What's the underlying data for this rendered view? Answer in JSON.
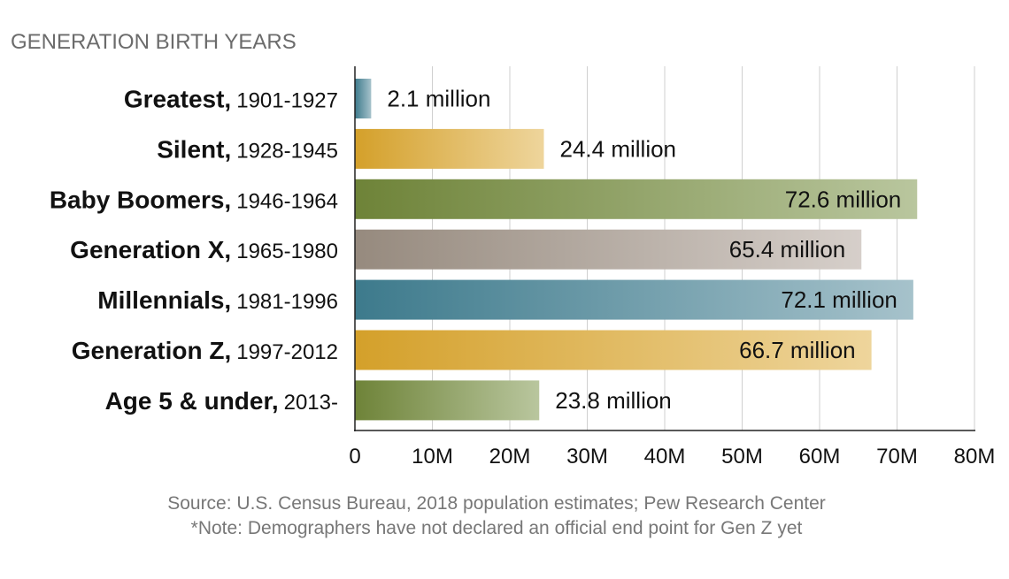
{
  "chart_data": {
    "type": "bar",
    "orientation": "horizontal",
    "title": "GENERATION BIRTH YEARS",
    "categories": [
      {
        "name": "Greatest,",
        "years": "1901-1927"
      },
      {
        "name": "Silent,",
        "years": "1928-1945"
      },
      {
        "name": "Baby Boomers,",
        "years": "1946-1964"
      },
      {
        "name": "Generation X,",
        "years": "1965-1980"
      },
      {
        "name": "Millennials,",
        "years": "1981-1996"
      },
      {
        "name": "Generation Z,",
        "years": "1997-2012"
      },
      {
        "name": "Age 5 & under,",
        "years": "2013-"
      }
    ],
    "values": [
      2.1,
      24.4,
      72.6,
      65.4,
      72.1,
      66.7,
      23.8
    ],
    "value_labels": [
      "2.1 million",
      "24.4 million",
      "72.6 million",
      "65.4 million",
      "72.1 million",
      "66.7 million",
      "23.8 million"
    ],
    "bar_colors": [
      [
        "#3d7a8c",
        "#a6c2cb"
      ],
      [
        "#d4a02a",
        "#eed59c"
      ],
      [
        "#6e8338",
        "#b9c69e"
      ],
      [
        "#968a7e",
        "#d6cfca"
      ],
      [
        "#3d7a8c",
        "#a6c2cb"
      ],
      [
        "#d4a02a",
        "#eed59c"
      ],
      [
        "#6e8338",
        "#b9c69e"
      ]
    ],
    "xlim": [
      0,
      80
    ],
    "xticks": [
      0,
      10,
      20,
      30,
      40,
      50,
      60,
      70,
      80
    ],
    "xtick_labels": [
      "0",
      "10M",
      "20M",
      "30M",
      "40M",
      "50M",
      "60M",
      "70M",
      "80M"
    ],
    "xlabel": "",
    "ylabel": "",
    "grid": "vertical",
    "source": "Source: U.S. Census Bureau, 2018 population estimates; Pew Research Center",
    "note": "*Note: Demographers have not declared an official end point for Gen Z yet"
  }
}
